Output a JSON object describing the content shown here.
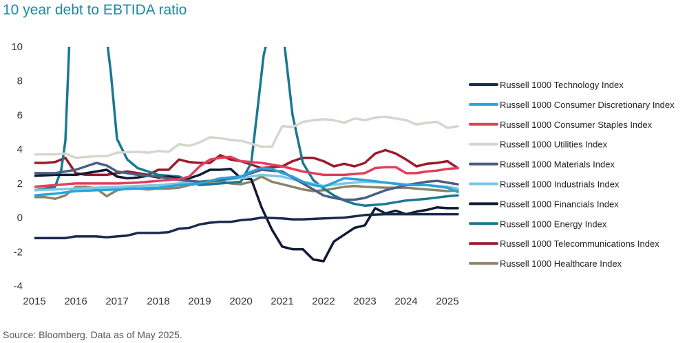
{
  "chart_data": {
    "type": "line",
    "title": "10 year debt to EBTIDA ratio",
    "xlabel": "",
    "ylabel": "",
    "xlim": [
      2015,
      2025.3
    ],
    "ylim": [
      -4,
      10
    ],
    "yticks": [
      -4,
      -2,
      0,
      2,
      4,
      6,
      8,
      10
    ],
    "xticks": [
      2015,
      2016,
      2017,
      2018,
      2019,
      2020,
      2021,
      2022,
      2023,
      2024,
      2025
    ],
    "grid": false,
    "legend_position": "right",
    "series": [
      {
        "name": "Russell 1000 Technology Index",
        "color": "#1b2a4e",
        "x": [
          2015,
          2015.5,
          2015.75,
          2016,
          2016.5,
          2016.75,
          2017,
          2017.25,
          2017.5,
          2018,
          2018.25,
          2018.5,
          2018.75,
          2019,
          2019.25,
          2019.5,
          2019.75,
          2020,
          2020.25,
          2020.5,
          2021,
          2021.25,
          2021.5,
          2022,
          2022.5,
          2023,
          2023.5,
          2024,
          2024.5,
          2025,
          2025.25
        ],
        "y": [
          -1.2,
          -1.2,
          -1.2,
          -1.1,
          -1.1,
          -1.15,
          -1.1,
          -1.05,
          -0.9,
          -0.9,
          -0.85,
          -0.65,
          -0.6,
          -0.4,
          -0.3,
          -0.25,
          -0.25,
          -0.15,
          -0.1,
          0,
          -0.05,
          -0.1,
          -0.1,
          -0.05,
          0,
          0.15,
          0.2,
          0.2,
          0.2,
          0.2,
          0.2
        ]
      },
      {
        "name": "Russell 1000 Consumer Discretionary Index",
        "color": "#2aa3dc",
        "x": [
          2015,
          2015.5,
          2016,
          2016.5,
          2017,
          2017.5,
          2018,
          2018.5,
          2019,
          2019.5,
          2020,
          2020.25,
          2020.5,
          2020.75,
          2021,
          2021.25,
          2021.5,
          2021.75,
          2022,
          2022.5,
          2023,
          2023.5,
          2024,
          2024.5,
          2025,
          2025.25
        ],
        "y": [
          1.3,
          1.4,
          1.55,
          1.6,
          1.65,
          1.7,
          1.75,
          1.9,
          2.0,
          2.3,
          2.4,
          2.7,
          2.9,
          2.85,
          2.6,
          2.4,
          2.1,
          1.9,
          1.8,
          2.3,
          2.2,
          2.05,
          1.9,
          1.9,
          1.75,
          1.5
        ]
      },
      {
        "name": "Russell 1000 Consumer Staples Index",
        "color": "#e0405a",
        "x": [
          2015,
          2015.5,
          2016,
          2016.5,
          2017,
          2017.5,
          2018,
          2018.5,
          2018.75,
          2019,
          2019.25,
          2019.5,
          2019.75,
          2020,
          2020.5,
          2021,
          2021.5,
          2022,
          2022.5,
          2023,
          2023.25,
          2023.5,
          2023.75,
          2024,
          2024.25,
          2024.5,
          2024.75,
          2025,
          2025.25
        ],
        "y": [
          1.8,
          1.9,
          2.0,
          2.0,
          2.0,
          2.05,
          2.15,
          2.25,
          2.4,
          3.0,
          3.4,
          3.5,
          3.55,
          3.3,
          3.2,
          3.0,
          2.7,
          2.5,
          2.5,
          2.6,
          2.9,
          2.95,
          2.95,
          2.6,
          2.6,
          2.7,
          2.75,
          2.85,
          2.9
        ]
      },
      {
        "name": "Russell 1000 Utilities Index",
        "color": "#d6d6cf",
        "x": [
          2015,
          2015.5,
          2015.75,
          2016,
          2016.5,
          2016.75,
          2017,
          2017.5,
          2017.75,
          2018,
          2018.25,
          2018.5,
          2018.75,
          2019,
          2019.25,
          2019.5,
          2019.75,
          2020,
          2020.5,
          2020.75,
          2021,
          2021.25,
          2021.5,
          2021.75,
          2022,
          2022.25,
          2022.5,
          2022.75,
          2023,
          2023.25,
          2023.5,
          2023.75,
          2024,
          2024.25,
          2024.5,
          2024.75,
          2025,
          2025.25
        ],
        "y": [
          3.7,
          3.7,
          3.75,
          3.5,
          3.6,
          3.6,
          3.8,
          3.85,
          3.8,
          3.9,
          3.85,
          4.3,
          4.2,
          4.4,
          4.7,
          4.65,
          4.55,
          4.5,
          4.15,
          4.15,
          5.35,
          5.3,
          5.6,
          5.7,
          5.75,
          5.7,
          5.55,
          5.8,
          5.7,
          5.85,
          5.9,
          5.8,
          5.7,
          5.45,
          5.55,
          5.6,
          5.25,
          5.35
        ]
      },
      {
        "name": "Russell 1000 Materials Index",
        "color": "#4d5e85",
        "x": [
          2015,
          2015.5,
          2016,
          2016.25,
          2016.5,
          2016.75,
          2017,
          2017.5,
          2018,
          2018.5,
          2019,
          2019.5,
          2020,
          2020.5,
          2021,
          2021.5,
          2022,
          2022.25,
          2022.5,
          2022.75,
          2023,
          2023.5,
          2024,
          2024.25,
          2024.5,
          2024.75,
          2025,
          2025.25
        ],
        "y": [
          2.6,
          2.6,
          2.8,
          3.0,
          3.2,
          3.05,
          2.7,
          2.5,
          2.4,
          2.2,
          2.1,
          2.2,
          2.4,
          2.8,
          2.7,
          2.0,
          1.3,
          1.15,
          1.05,
          1.05,
          1.15,
          1.6,
          1.9,
          2.0,
          2.1,
          2.15,
          2.05,
          1.95
        ]
      },
      {
        "name": "Russell 1000 Industrials Index",
        "color": "#7bc6e4",
        "x": [
          2015,
          2015.5,
          2016,
          2016.5,
          2017,
          2017.5,
          2018,
          2018.5,
          2019,
          2019.5,
          2020,
          2020.5,
          2021,
          2021.5,
          2022,
          2022.5,
          2023,
          2023.5,
          2024,
          2024.5,
          2025,
          2025.25
        ],
        "y": [
          1.6,
          1.65,
          1.7,
          1.75,
          1.8,
          1.85,
          1.9,
          2.0,
          2.1,
          2.2,
          2.3,
          2.5,
          2.4,
          2.1,
          1.85,
          2.0,
          2.1,
          2.05,
          1.95,
          1.9,
          1.8,
          1.7
        ]
      },
      {
        "name": "Russell 1000 Financials Index",
        "color": "#111a33",
        "x": [
          2015,
          2015.5,
          2016,
          2016.5,
          2016.75,
          2017,
          2017.25,
          2017.5,
          2017.75,
          2018,
          2018.25,
          2018.5,
          2018.75,
          2019,
          2019.25,
          2019.5,
          2019.75,
          2020,
          2020.25,
          2020.5,
          2020.75,
          2021,
          2021.25,
          2021.5,
          2021.75,
          2022,
          2022.25,
          2022.5,
          2022.75,
          2023,
          2023.25,
          2023.5,
          2023.75,
          2024,
          2024.25,
          2024.5,
          2024.75,
          2025,
          2025.25
        ],
        "y": [
          2.45,
          2.5,
          2.5,
          2.7,
          2.8,
          2.4,
          2.3,
          2.35,
          2.45,
          2.35,
          2.4,
          2.3,
          2.3,
          2.5,
          2.8,
          2.8,
          2.85,
          2.3,
          2.25,
          0.6,
          -0.7,
          -1.7,
          -1.85,
          -1.85,
          -2.45,
          -2.55,
          -1.4,
          -1.0,
          -0.6,
          -0.45,
          0.55,
          0.25,
          0.4,
          0.2,
          0.35,
          0.45,
          0.6,
          0.55,
          0.55
        ]
      },
      {
        "name": "Russell 1000 Energy Index",
        "color": "#1b7891",
        "x": [
          2015,
          2015.5,
          2015.65,
          2015.75,
          2015.85,
          2016.75,
          2016.85,
          2017,
          2017.25,
          2017.5,
          2018,
          2018.5,
          2019,
          2019.5,
          2020,
          2020.25,
          2020.4,
          2020.55,
          2020.65,
          2020.7,
          2021,
          2021.05,
          2021.25,
          2021.5,
          2021.75,
          2022,
          2022.25,
          2022.5,
          2022.75,
          2023,
          2023.5,
          2024,
          2024.5,
          2025,
          2025.25
        ],
        "y": [
          1.6,
          1.8,
          2.8,
          4.5,
          10.5,
          10.5,
          8.5,
          4.6,
          3.4,
          2.9,
          2.5,
          2.4,
          1.9,
          2.0,
          2.1,
          3.2,
          6.3,
          9.5,
          10.5,
          10.5,
          10.5,
          10.2,
          6.0,
          3.2,
          2.2,
          1.7,
          1.3,
          1.0,
          0.8,
          0.7,
          0.8,
          1.0,
          1.1,
          1.25,
          1.3
        ]
      },
      {
        "name": "Russell 1000 Telecommunications Index",
        "color": "#9c1a2c",
        "x": [
          2015,
          2015.25,
          2015.5,
          2015.75,
          2016,
          2016.25,
          2016.5,
          2016.75,
          2017,
          2017.25,
          2017.5,
          2017.75,
          2018,
          2018.25,
          2018.5,
          2018.75,
          2019,
          2019.25,
          2019.5,
          2019.75,
          2020,
          2020.25,
          2020.5,
          2020.75,
          2021,
          2021.25,
          2021.5,
          2021.75,
          2022,
          2022.25,
          2022.5,
          2022.75,
          2023,
          2023.25,
          2023.5,
          2023.75,
          2024,
          2024.25,
          2024.5,
          2024.75,
          2025,
          2025.25
        ],
        "y": [
          3.2,
          3.2,
          3.25,
          3.5,
          2.6,
          2.5,
          2.5,
          2.5,
          2.6,
          2.7,
          2.6,
          2.5,
          2.8,
          2.8,
          3.4,
          3.25,
          3.2,
          3.2,
          3.65,
          3.4,
          3.3,
          3.1,
          2.9,
          2.95,
          3.0,
          3.3,
          3.5,
          3.5,
          3.3,
          3.0,
          3.15,
          3.0,
          3.2,
          3.75,
          3.95,
          3.75,
          3.4,
          3.0,
          3.15,
          3.2,
          3.3,
          2.9
        ]
      },
      {
        "name": "Russell 1000 Healthcare Index",
        "color": "#8c8469",
        "x": [
          2015,
          2015.25,
          2015.5,
          2015.75,
          2016,
          2016.25,
          2016.5,
          2016.75,
          2017,
          2017.25,
          2017.5,
          2017.75,
          2018,
          2018.25,
          2018.5,
          2018.75,
          2019,
          2019.25,
          2019.5,
          2019.75,
          2020,
          2020.25,
          2020.5,
          2020.75,
          2021,
          2021.25,
          2021.5,
          2021.75,
          2022,
          2022.25,
          2022.5,
          2022.75,
          2023,
          2023.5,
          2024,
          2024.5,
          2025,
          2025.25
        ],
        "y": [
          1.2,
          1.2,
          1.1,
          1.3,
          1.8,
          1.8,
          1.7,
          1.25,
          1.6,
          1.7,
          1.7,
          1.65,
          1.7,
          1.7,
          1.75,
          1.9,
          2.0,
          2.1,
          2.15,
          2.0,
          1.95,
          2.1,
          2.4,
          2.1,
          1.95,
          1.8,
          1.65,
          1.55,
          1.6,
          1.7,
          1.8,
          1.85,
          1.8,
          1.75,
          1.75,
          1.65,
          1.55,
          1.6
        ]
      }
    ]
  },
  "source_note": "Source: Bloomberg. Data as of May 2025."
}
